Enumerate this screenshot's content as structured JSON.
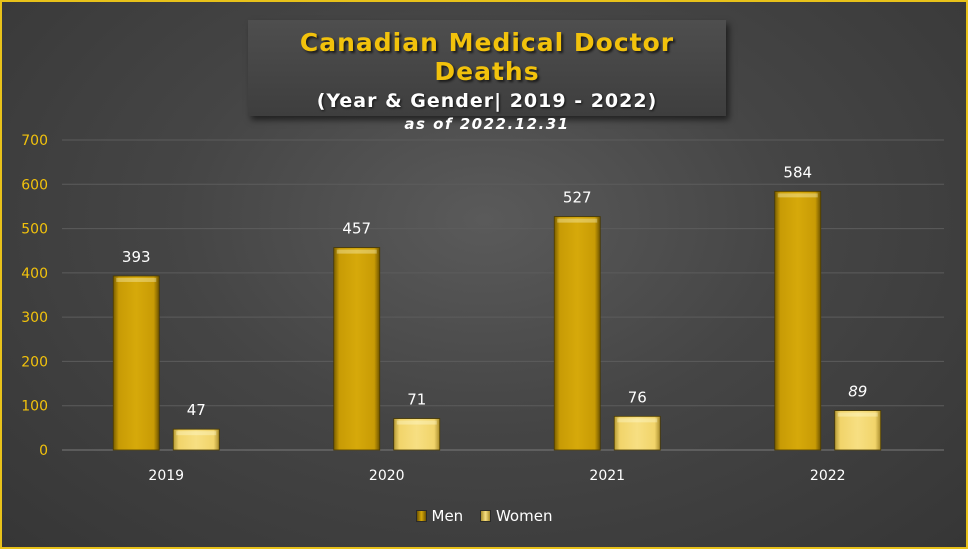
{
  "chart_data": {
    "type": "bar",
    "title": "Canadian Medical Doctor Deaths",
    "subtitle": "(Year & Gender| 2019 - 2022)",
    "note": "as of 2022.12.31",
    "categories": [
      "2019",
      "2020",
      "2021",
      "2022"
    ],
    "series": [
      {
        "name": "Men",
        "values": [
          393,
          457,
          527,
          584
        ],
        "color": "#c89b05"
      },
      {
        "name": "Women",
        "values": [
          47,
          71,
          76,
          89
        ],
        "color": "#f1d46a"
      }
    ],
    "y_ticks": [
      "0",
      "100",
      "200",
      "300",
      "400",
      "500",
      "600",
      "700"
    ],
    "ylim": [
      0,
      700
    ],
    "grid": true,
    "legend": "bottom"
  }
}
